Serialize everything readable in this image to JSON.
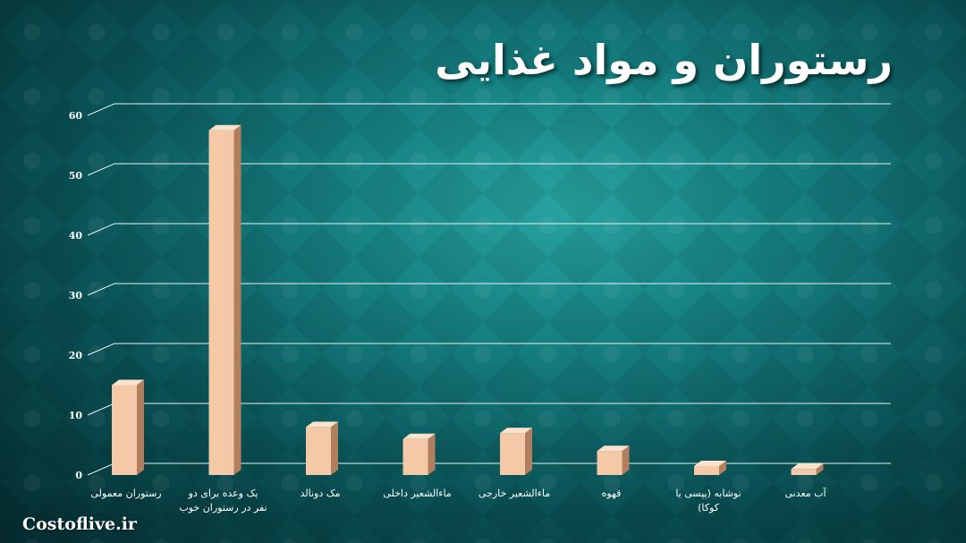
{
  "chart_data": {
    "type": "bar",
    "title": "رستوران و مواد غذایی",
    "categories": [
      "رستوران معمولی",
      "یک وعده برای دو نفر در رستوران خوب",
      "مک دونالد",
      "ماءالشعیر داخلی",
      "ماءالشعیر خارجی",
      "قهوه",
      "نوشابه (پپسی یا کوکا)",
      "آب معدنی"
    ],
    "category_label_lines": [
      [
        "رستوران معمولی"
      ],
      [
        "یک وعده برای دو",
        "نفر در رستوران خوب"
      ],
      [
        "مک دونالد"
      ],
      [
        "ماءالشعیر داخلی"
      ],
      [
        "ماءالشعیر خارجی"
      ],
      [
        "قهوه"
      ],
      [
        "نوشابه (پپسی یا",
        "کوکا)"
      ],
      [
        "آب معدنی"
      ]
    ],
    "values": [
      15,
      57.5,
      8,
      6,
      7,
      4,
      1.5,
      1
    ],
    "ylim": [
      0,
      60
    ],
    "yticks": [
      "0",
      "10",
      "20",
      "30",
      "40",
      "50",
      "60"
    ],
    "xlabel": "",
    "ylabel": "",
    "grid": true,
    "legend": "none",
    "colors": {
      "bar_front": "#f3c9a8",
      "bar_side": "#b27f5e",
      "bar_top": "#fbe2cc",
      "gridline": "#e6f3f2"
    }
  },
  "watermark": "Costoflive.ir"
}
